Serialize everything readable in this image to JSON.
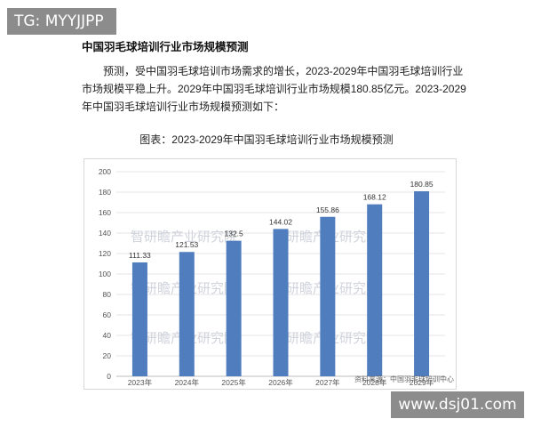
{
  "tags": {
    "top_left": "TG: MYYJJPP",
    "bottom_right": "www.dsj01.com"
  },
  "document": {
    "title": "中国羽毛球培训行业市场规模预测",
    "paragraph_lines": [
      "预测，受中国羽毛球培训市场需求的增长，2023-2029年中国羽毛球培训行业",
      "市场规模平稳上升。2029年中国羽毛球培训行业市场规模180.85亿元。2023-2029",
      "年中国羽毛球培训行业市场规模预测如下："
    ],
    "figure_caption": "图表：2023-2029年中国羽毛球培训行业市场规模预测"
  },
  "chart_data": {
    "type": "bar",
    "title": "",
    "xlabel": "",
    "ylabel": "",
    "categories": [
      "2023年",
      "2024年",
      "2025年",
      "2026年",
      "2027年",
      "2028年",
      "2029年"
    ],
    "values": [
      111.33,
      121.53,
      132.5,
      144.02,
      155.86,
      168.12,
      180.85
    ],
    "value_labels": [
      "111.33",
      "121.53",
      "132.5",
      "144.02",
      "155.86",
      "168.12",
      "180.85"
    ],
    "ylim": [
      0,
      200
    ],
    "yticks": [
      0,
      20,
      40,
      60,
      80,
      100,
      120,
      140,
      160,
      180,
      200
    ],
    "grid": true,
    "bar_color": "#4f7dbd",
    "watermarks": [
      "智研瞻产业研究院",
      "智研瞻产业研究院",
      "智研瞻产业研究院",
      "智研瞻产业研究院",
      "智研瞻产业研究院",
      "智研瞻产业研究院"
    ],
    "source": "资料来源：中国羽毛球培训中心"
  }
}
